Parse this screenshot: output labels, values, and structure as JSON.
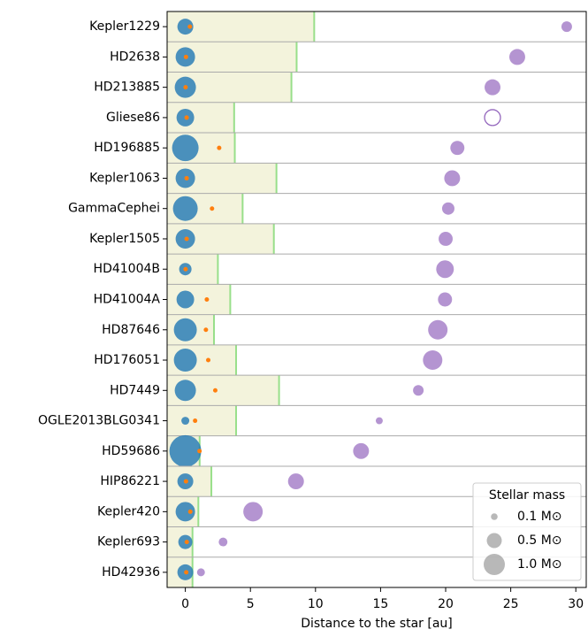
{
  "chart_data": {
    "type": "scatter",
    "xlabel": "Distance to the star [au]",
    "categories": [
      "Kepler1229",
      "HD2638",
      "HD213885",
      "Gliese86",
      "HD196885",
      "Kepler1063",
      "GammaCephei",
      "Kepler1505",
      "HD41004B",
      "HD41004A",
      "HD87646",
      "HD176051",
      "HD7449",
      "OGLE2013BLG0341",
      "HD59686",
      "HIP86221",
      "Kepler420",
      "Kepler693",
      "HD42936"
    ],
    "primary_x": [
      0,
      0,
      0,
      0,
      0,
      0,
      0,
      0,
      0,
      0,
      0,
      0,
      0,
      0,
      0,
      0,
      0,
      0,
      0
    ],
    "primary_mass": [
      0.56,
      0.84,
      1.0,
      0.69,
      1.56,
      0.84,
      1.36,
      0.84,
      0.34,
      0.69,
      1.17,
      1.17,
      1.0,
      0.14,
      2.25,
      0.56,
      0.84,
      0.44,
      0.56
    ],
    "planet_x": [
      0.35,
      0.05,
      0.02,
      0.1,
      2.6,
      0.1,
      2.05,
      0.1,
      0.02,
      1.65,
      1.58,
      1.76,
      2.3,
      0.75,
      1.09,
      0.05,
      0.38,
      0.11,
      0.07
    ],
    "boundary_x": [
      9.9,
      8.55,
      8.15,
      3.75,
      3.8,
      7.0,
      4.4,
      6.8,
      2.5,
      3.45,
      2.2,
      3.9,
      7.2,
      3.9,
      1.1,
      2.0,
      1.0,
      0.55,
      0.55
    ],
    "companion_x": [
      29.3,
      25.5,
      23.6,
      23.6,
      20.9,
      20.5,
      20.2,
      20.0,
      19.95,
      19.95,
      19.4,
      19.0,
      17.9,
      14.9,
      13.5,
      8.5,
      5.2,
      2.9,
      1.2
    ],
    "companion_mass": [
      0.25,
      0.56,
      0.56,
      0.56,
      0.44,
      0.56,
      0.34,
      0.44,
      0.69,
      0.44,
      0.84,
      0.84,
      0.25,
      0.11,
      0.56,
      0.56,
      0.84,
      0.17,
      0.14
    ],
    "companion_filled": [
      true,
      true,
      true,
      false,
      true,
      true,
      true,
      true,
      true,
      true,
      true,
      true,
      true,
      true,
      true,
      true,
      true,
      true,
      true
    ],
    "xlim": [
      -1.4,
      30.8
    ],
    "xticks": [
      0,
      5,
      10,
      15,
      20,
      25,
      30
    ],
    "colors": {
      "primary": "#1f77b4",
      "planet": "#ff7f0e",
      "companion": "#9467bd",
      "region": "#f3f3dc",
      "boundary": "#98df8a"
    },
    "legend": {
      "title": "Stellar mass",
      "position": "lower right",
      "sizes": [
        0.1,
        0.5,
        1.0
      ],
      "labels": [
        "0.1 M⊙",
        "0.5 M⊙",
        "1.0 M⊙"
      ]
    }
  }
}
